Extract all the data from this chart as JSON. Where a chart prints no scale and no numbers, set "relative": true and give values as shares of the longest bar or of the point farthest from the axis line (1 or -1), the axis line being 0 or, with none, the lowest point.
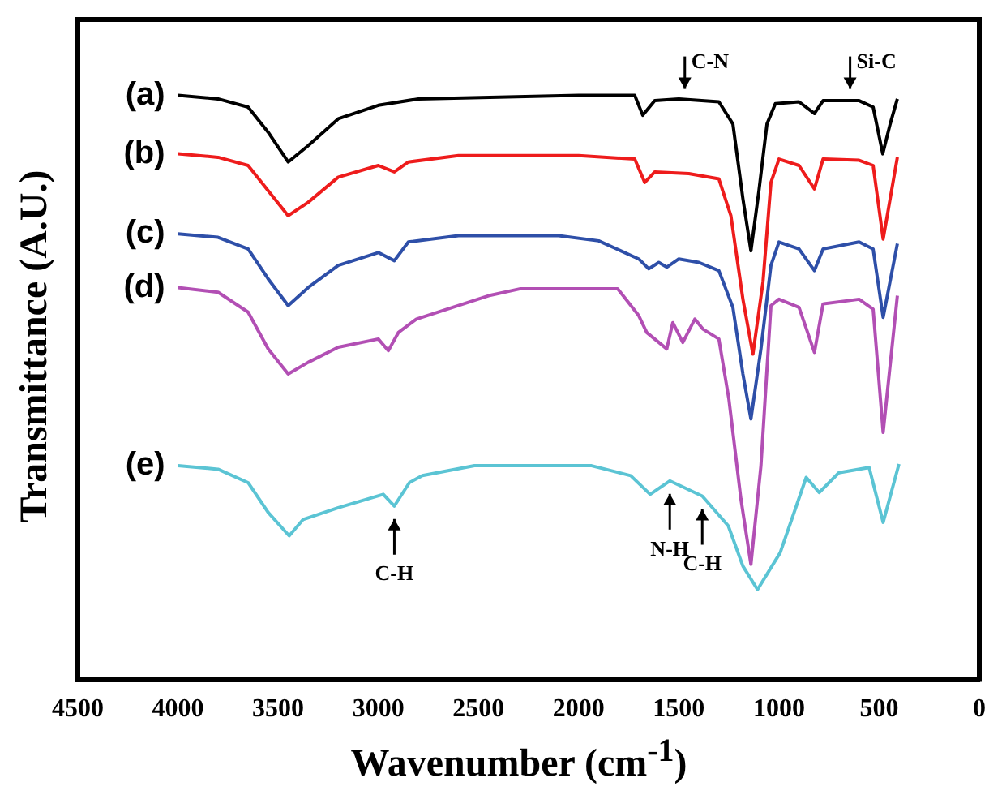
{
  "chart_data": {
    "type": "line",
    "relative": true,
    "xlabel": "Wavenumber (cm$^{-1}$)",
    "ylabel": "Transmittance (A.U.)",
    "xlim": [
      4500,
      0
    ],
    "xticks": [
      4500,
      4000,
      3500,
      3000,
      2500,
      2000,
      1500,
      1000,
      500,
      0
    ],
    "marker": "none",
    "series": [
      {
        "name": "(a)",
        "color": "#000000",
        "x": [
          4000,
          3800,
          3650,
          3550,
          3450,
          3350,
          3200,
          3000,
          2800,
          2000,
          1720,
          1680,
          1620,
          1500,
          1300,
          1230,
          1180,
          1140,
          1100,
          1060,
          1018,
          900,
          823,
          780,
          600,
          530,
          482,
          445,
          409
        ],
        "values": [
          1.0,
          0.994,
          0.98,
          0.937,
          0.886,
          0.914,
          0.96,
          0.983,
          0.994,
          1.0,
          1.0,
          0.966,
          0.991,
          0.994,
          0.989,
          0.951,
          0.823,
          0.734,
          0.837,
          0.951,
          0.986,
          0.989,
          0.969,
          0.991,
          0.991,
          0.98,
          0.9,
          0.951,
          0.994
        ]
      },
      {
        "name": "(b)",
        "color": "#ee1c1c",
        "x": [
          4000,
          3800,
          3650,
          3550,
          3450,
          3350,
          3200,
          3000,
          2920,
          2850,
          2600,
          2000,
          1720,
          1670,
          1620,
          1450,
          1300,
          1240,
          1180,
          1130,
          1080,
          1040,
          1000,
          900,
          823,
          780,
          600,
          530,
          480,
          409
        ],
        "values": [
          0.9,
          0.894,
          0.88,
          0.837,
          0.794,
          0.817,
          0.86,
          0.88,
          0.869,
          0.886,
          0.897,
          0.897,
          0.891,
          0.851,
          0.869,
          0.866,
          0.857,
          0.794,
          0.651,
          0.557,
          0.68,
          0.851,
          0.891,
          0.88,
          0.84,
          0.891,
          0.889,
          0.88,
          0.754,
          0.894
        ]
      },
      {
        "name": "(c)",
        "color": "#2e4fa8",
        "x": [
          4000,
          3800,
          3650,
          3550,
          3450,
          3350,
          3200,
          3000,
          2920,
          2850,
          2600,
          2100,
          1900,
          1700,
          1650,
          1600,
          1560,
          1500,
          1400,
          1300,
          1230,
          1180,
          1140,
          1090,
          1040,
          1000,
          900,
          823,
          780,
          600,
          530,
          480,
          409
        ],
        "values": [
          0.763,
          0.757,
          0.737,
          0.686,
          0.64,
          0.671,
          0.709,
          0.731,
          0.717,
          0.749,
          0.76,
          0.76,
          0.751,
          0.72,
          0.703,
          0.714,
          0.706,
          0.72,
          0.714,
          0.7,
          0.637,
          0.523,
          0.446,
          0.566,
          0.709,
          0.749,
          0.737,
          0.7,
          0.737,
          0.749,
          0.737,
          0.62,
          0.746
        ]
      },
      {
        "name": "(d)",
        "color": "#b24fb4",
        "x": [
          4000,
          3800,
          3650,
          3550,
          3450,
          3350,
          3200,
          3000,
          2950,
          2900,
          2810,
          2450,
          2290,
          1805,
          1700,
          1660,
          1560,
          1530,
          1480,
          1420,
          1380,
          1300,
          1250,
          1190,
          1140,
          1090,
          1040,
          1000,
          900,
          823,
          780,
          600,
          530,
          480,
          409
        ],
        "values": [
          0.671,
          0.663,
          0.629,
          0.566,
          0.523,
          0.543,
          0.569,
          0.583,
          0.563,
          0.594,
          0.617,
          0.657,
          0.669,
          0.669,
          0.623,
          0.594,
          0.566,
          0.611,
          0.577,
          0.617,
          0.6,
          0.583,
          0.48,
          0.309,
          0.197,
          0.366,
          0.64,
          0.651,
          0.637,
          0.56,
          0.643,
          0.651,
          0.634,
          0.423,
          0.657
        ]
      },
      {
        "name": "(e)",
        "color": "#5bc4d4",
        "x": [
          4000,
          3800,
          3650,
          3550,
          3445,
          3375,
          3200,
          2975,
          2920,
          2845,
          2780,
          2520,
          1935,
          1740,
          1643,
          1545,
          1383,
          1253,
          1180,
          1107,
          994,
          864,
          799,
          701,
          550,
          480,
          401
        ],
        "values": [
          0.366,
          0.36,
          0.337,
          0.286,
          0.246,
          0.274,
          0.294,
          0.317,
          0.297,
          0.337,
          0.349,
          0.366,
          0.366,
          0.349,
          0.317,
          0.34,
          0.314,
          0.263,
          0.194,
          0.154,
          0.217,
          0.346,
          0.32,
          0.354,
          0.363,
          0.269,
          0.369
        ]
      }
    ],
    "annotations": [
      {
        "text": "C-N",
        "x": 1470,
        "y": 1.0
      },
      {
        "text": "Si-C",
        "x": 645,
        "y": 1.0
      },
      {
        "text": "C-H",
        "x": 2920,
        "y": 0.297
      },
      {
        "text": "N-H",
        "x": 1545,
        "y": 0.34
      },
      {
        "text": "C-H",
        "x": 1383,
        "y": 0.314
      }
    ]
  }
}
